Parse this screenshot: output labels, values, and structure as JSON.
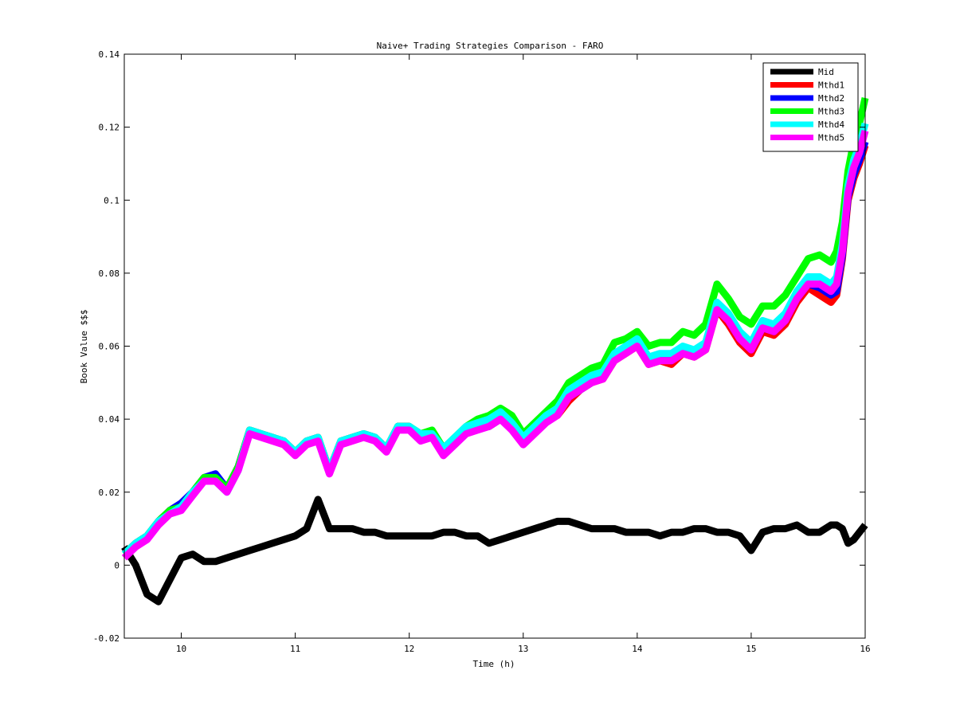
{
  "chart_data": {
    "type": "line",
    "title": "Naive+ Trading Strategies Comparison - FARO",
    "xlabel": "Time (h)",
    "ylabel": "Book Value $$$",
    "xlim": [
      9.5,
      16
    ],
    "ylim": [
      -0.02,
      0.14
    ],
    "xticks": [
      10,
      11,
      12,
      13,
      14,
      15,
      16
    ],
    "yticks": [
      -0.02,
      0,
      0.02,
      0.04,
      0.06,
      0.08,
      0.1,
      0.12,
      0.14
    ],
    "xtick_labels": [
      "10",
      "11",
      "12",
      "13",
      "14",
      "15",
      "16"
    ],
    "ytick_labels": [
      "-0.02",
      "0",
      "0.02",
      "0.04",
      "0.06",
      "0.08",
      "0.1",
      "0.12",
      "0.14"
    ],
    "grid": false,
    "legend_position": "top-right",
    "x": [
      9.5,
      9.6,
      9.7,
      9.8,
      9.9,
      10.0,
      10.1,
      10.2,
      10.3,
      10.4,
      10.5,
      10.6,
      10.7,
      10.8,
      10.9,
      11.0,
      11.1,
      11.2,
      11.3,
      11.4,
      11.5,
      11.6,
      11.7,
      11.8,
      11.9,
      12.0,
      12.1,
      12.2,
      12.3,
      12.4,
      12.5,
      12.6,
      12.7,
      12.8,
      12.9,
      13.0,
      13.1,
      13.2,
      13.3,
      13.4,
      13.5,
      13.6,
      13.7,
      13.8,
      13.9,
      14.0,
      14.1,
      14.2,
      14.3,
      14.4,
      14.5,
      14.6,
      14.7,
      14.8,
      14.9,
      15.0,
      15.1,
      15.2,
      15.3,
      15.4,
      15.5,
      15.6,
      15.7,
      15.75,
      15.8,
      15.85,
      15.9,
      15.95,
      16.0
    ],
    "series": [
      {
        "name": "Mid",
        "color": "#000000",
        "values": [
          0.005,
          0.0,
          -0.008,
          -0.01,
          -0.004,
          0.002,
          0.003,
          0.001,
          0.001,
          0.002,
          0.003,
          0.004,
          0.005,
          0.006,
          0.007,
          0.008,
          0.01,
          0.018,
          0.01,
          0.01,
          0.01,
          0.009,
          0.009,
          0.008,
          0.008,
          0.008,
          0.008,
          0.008,
          0.009,
          0.009,
          0.008,
          0.008,
          0.006,
          0.007,
          0.008,
          0.009,
          0.01,
          0.011,
          0.012,
          0.012,
          0.011,
          0.01,
          0.01,
          0.01,
          0.009,
          0.009,
          0.009,
          0.008,
          0.009,
          0.009,
          0.01,
          0.01,
          0.009,
          0.009,
          0.008,
          0.004,
          0.009,
          0.01,
          0.01,
          0.011,
          0.009,
          0.009,
          0.011,
          0.011,
          0.01,
          0.006,
          0.007,
          0.009,
          0.011
        ]
      },
      {
        "name": "Mthd1",
        "color": "#ff0000",
        "values": [
          0.003,
          0.006,
          0.008,
          0.012,
          0.015,
          0.016,
          0.02,
          0.024,
          0.024,
          0.021,
          0.027,
          0.037,
          0.036,
          0.035,
          0.034,
          0.031,
          0.034,
          0.035,
          0.026,
          0.034,
          0.035,
          0.036,
          0.035,
          0.032,
          0.038,
          0.038,
          0.035,
          0.036,
          0.031,
          0.034,
          0.037,
          0.038,
          0.038,
          0.04,
          0.038,
          0.034,
          0.037,
          0.04,
          0.041,
          0.045,
          0.048,
          0.05,
          0.051,
          0.056,
          0.058,
          0.06,
          0.055,
          0.056,
          0.055,
          0.058,
          0.057,
          0.059,
          0.07,
          0.066,
          0.061,
          0.058,
          0.064,
          0.063,
          0.066,
          0.072,
          0.076,
          0.074,
          0.072,
          0.074,
          0.084,
          0.1,
          0.106,
          0.11,
          0.115
        ]
      },
      {
        "name": "Mthd2",
        "color": "#0000ff",
        "values": [
          0.003,
          0.006,
          0.008,
          0.012,
          0.015,
          0.017,
          0.02,
          0.024,
          0.025,
          0.021,
          0.027,
          0.037,
          0.036,
          0.035,
          0.034,
          0.031,
          0.034,
          0.035,
          0.026,
          0.034,
          0.035,
          0.036,
          0.035,
          0.032,
          0.038,
          0.038,
          0.035,
          0.036,
          0.031,
          0.034,
          0.037,
          0.038,
          0.038,
          0.04,
          0.038,
          0.034,
          0.037,
          0.04,
          0.042,
          0.046,
          0.048,
          0.05,
          0.052,
          0.057,
          0.059,
          0.061,
          0.056,
          0.057,
          0.056,
          0.059,
          0.058,
          0.06,
          0.071,
          0.067,
          0.062,
          0.059,
          0.065,
          0.064,
          0.067,
          0.073,
          0.077,
          0.076,
          0.074,
          0.075,
          0.085,
          0.101,
          0.107,
          0.111,
          0.116
        ]
      },
      {
        "name": "Mthd3",
        "color": "#00ff00",
        "values": [
          0.003,
          0.006,
          0.008,
          0.012,
          0.015,
          0.016,
          0.02,
          0.024,
          0.024,
          0.021,
          0.027,
          0.037,
          0.036,
          0.035,
          0.034,
          0.031,
          0.034,
          0.035,
          0.026,
          0.034,
          0.035,
          0.036,
          0.035,
          0.032,
          0.038,
          0.038,
          0.036,
          0.037,
          0.032,
          0.035,
          0.038,
          0.04,
          0.041,
          0.043,
          0.041,
          0.036,
          0.039,
          0.042,
          0.045,
          0.05,
          0.052,
          0.054,
          0.055,
          0.061,
          0.062,
          0.064,
          0.06,
          0.061,
          0.061,
          0.064,
          0.063,
          0.066,
          0.077,
          0.073,
          0.068,
          0.066,
          0.071,
          0.071,
          0.074,
          0.079,
          0.084,
          0.085,
          0.083,
          0.086,
          0.094,
          0.108,
          0.116,
          0.121,
          0.128
        ]
      },
      {
        "name": "Mthd4",
        "color": "#00ffff",
        "values": [
          0.003,
          0.006,
          0.008,
          0.012,
          0.014,
          0.016,
          0.02,
          0.023,
          0.023,
          0.02,
          0.026,
          0.037,
          0.036,
          0.035,
          0.034,
          0.031,
          0.034,
          0.035,
          0.026,
          0.034,
          0.035,
          0.036,
          0.035,
          0.032,
          0.038,
          0.038,
          0.036,
          0.036,
          0.032,
          0.035,
          0.038,
          0.039,
          0.04,
          0.042,
          0.039,
          0.035,
          0.038,
          0.041,
          0.043,
          0.048,
          0.05,
          0.052,
          0.053,
          0.058,
          0.06,
          0.062,
          0.057,
          0.058,
          0.058,
          0.06,
          0.059,
          0.061,
          0.072,
          0.069,
          0.064,
          0.061,
          0.067,
          0.066,
          0.069,
          0.075,
          0.079,
          0.079,
          0.077,
          0.079,
          0.088,
          0.104,
          0.111,
          0.115,
          0.121
        ]
      },
      {
        "name": "Mthd5",
        "color": "#ff00ff",
        "values": [
          0.002,
          0.005,
          0.007,
          0.011,
          0.014,
          0.015,
          0.019,
          0.023,
          0.023,
          0.02,
          0.026,
          0.036,
          0.035,
          0.034,
          0.033,
          0.03,
          0.033,
          0.034,
          0.025,
          0.033,
          0.034,
          0.035,
          0.034,
          0.031,
          0.037,
          0.037,
          0.034,
          0.035,
          0.03,
          0.033,
          0.036,
          0.037,
          0.038,
          0.04,
          0.037,
          0.033,
          0.036,
          0.039,
          0.041,
          0.046,
          0.048,
          0.05,
          0.051,
          0.056,
          0.058,
          0.06,
          0.055,
          0.056,
          0.056,
          0.058,
          0.057,
          0.059,
          0.07,
          0.067,
          0.062,
          0.059,
          0.065,
          0.064,
          0.067,
          0.073,
          0.077,
          0.077,
          0.075,
          0.077,
          0.086,
          0.102,
          0.109,
          0.113,
          0.119
        ]
      }
    ]
  }
}
